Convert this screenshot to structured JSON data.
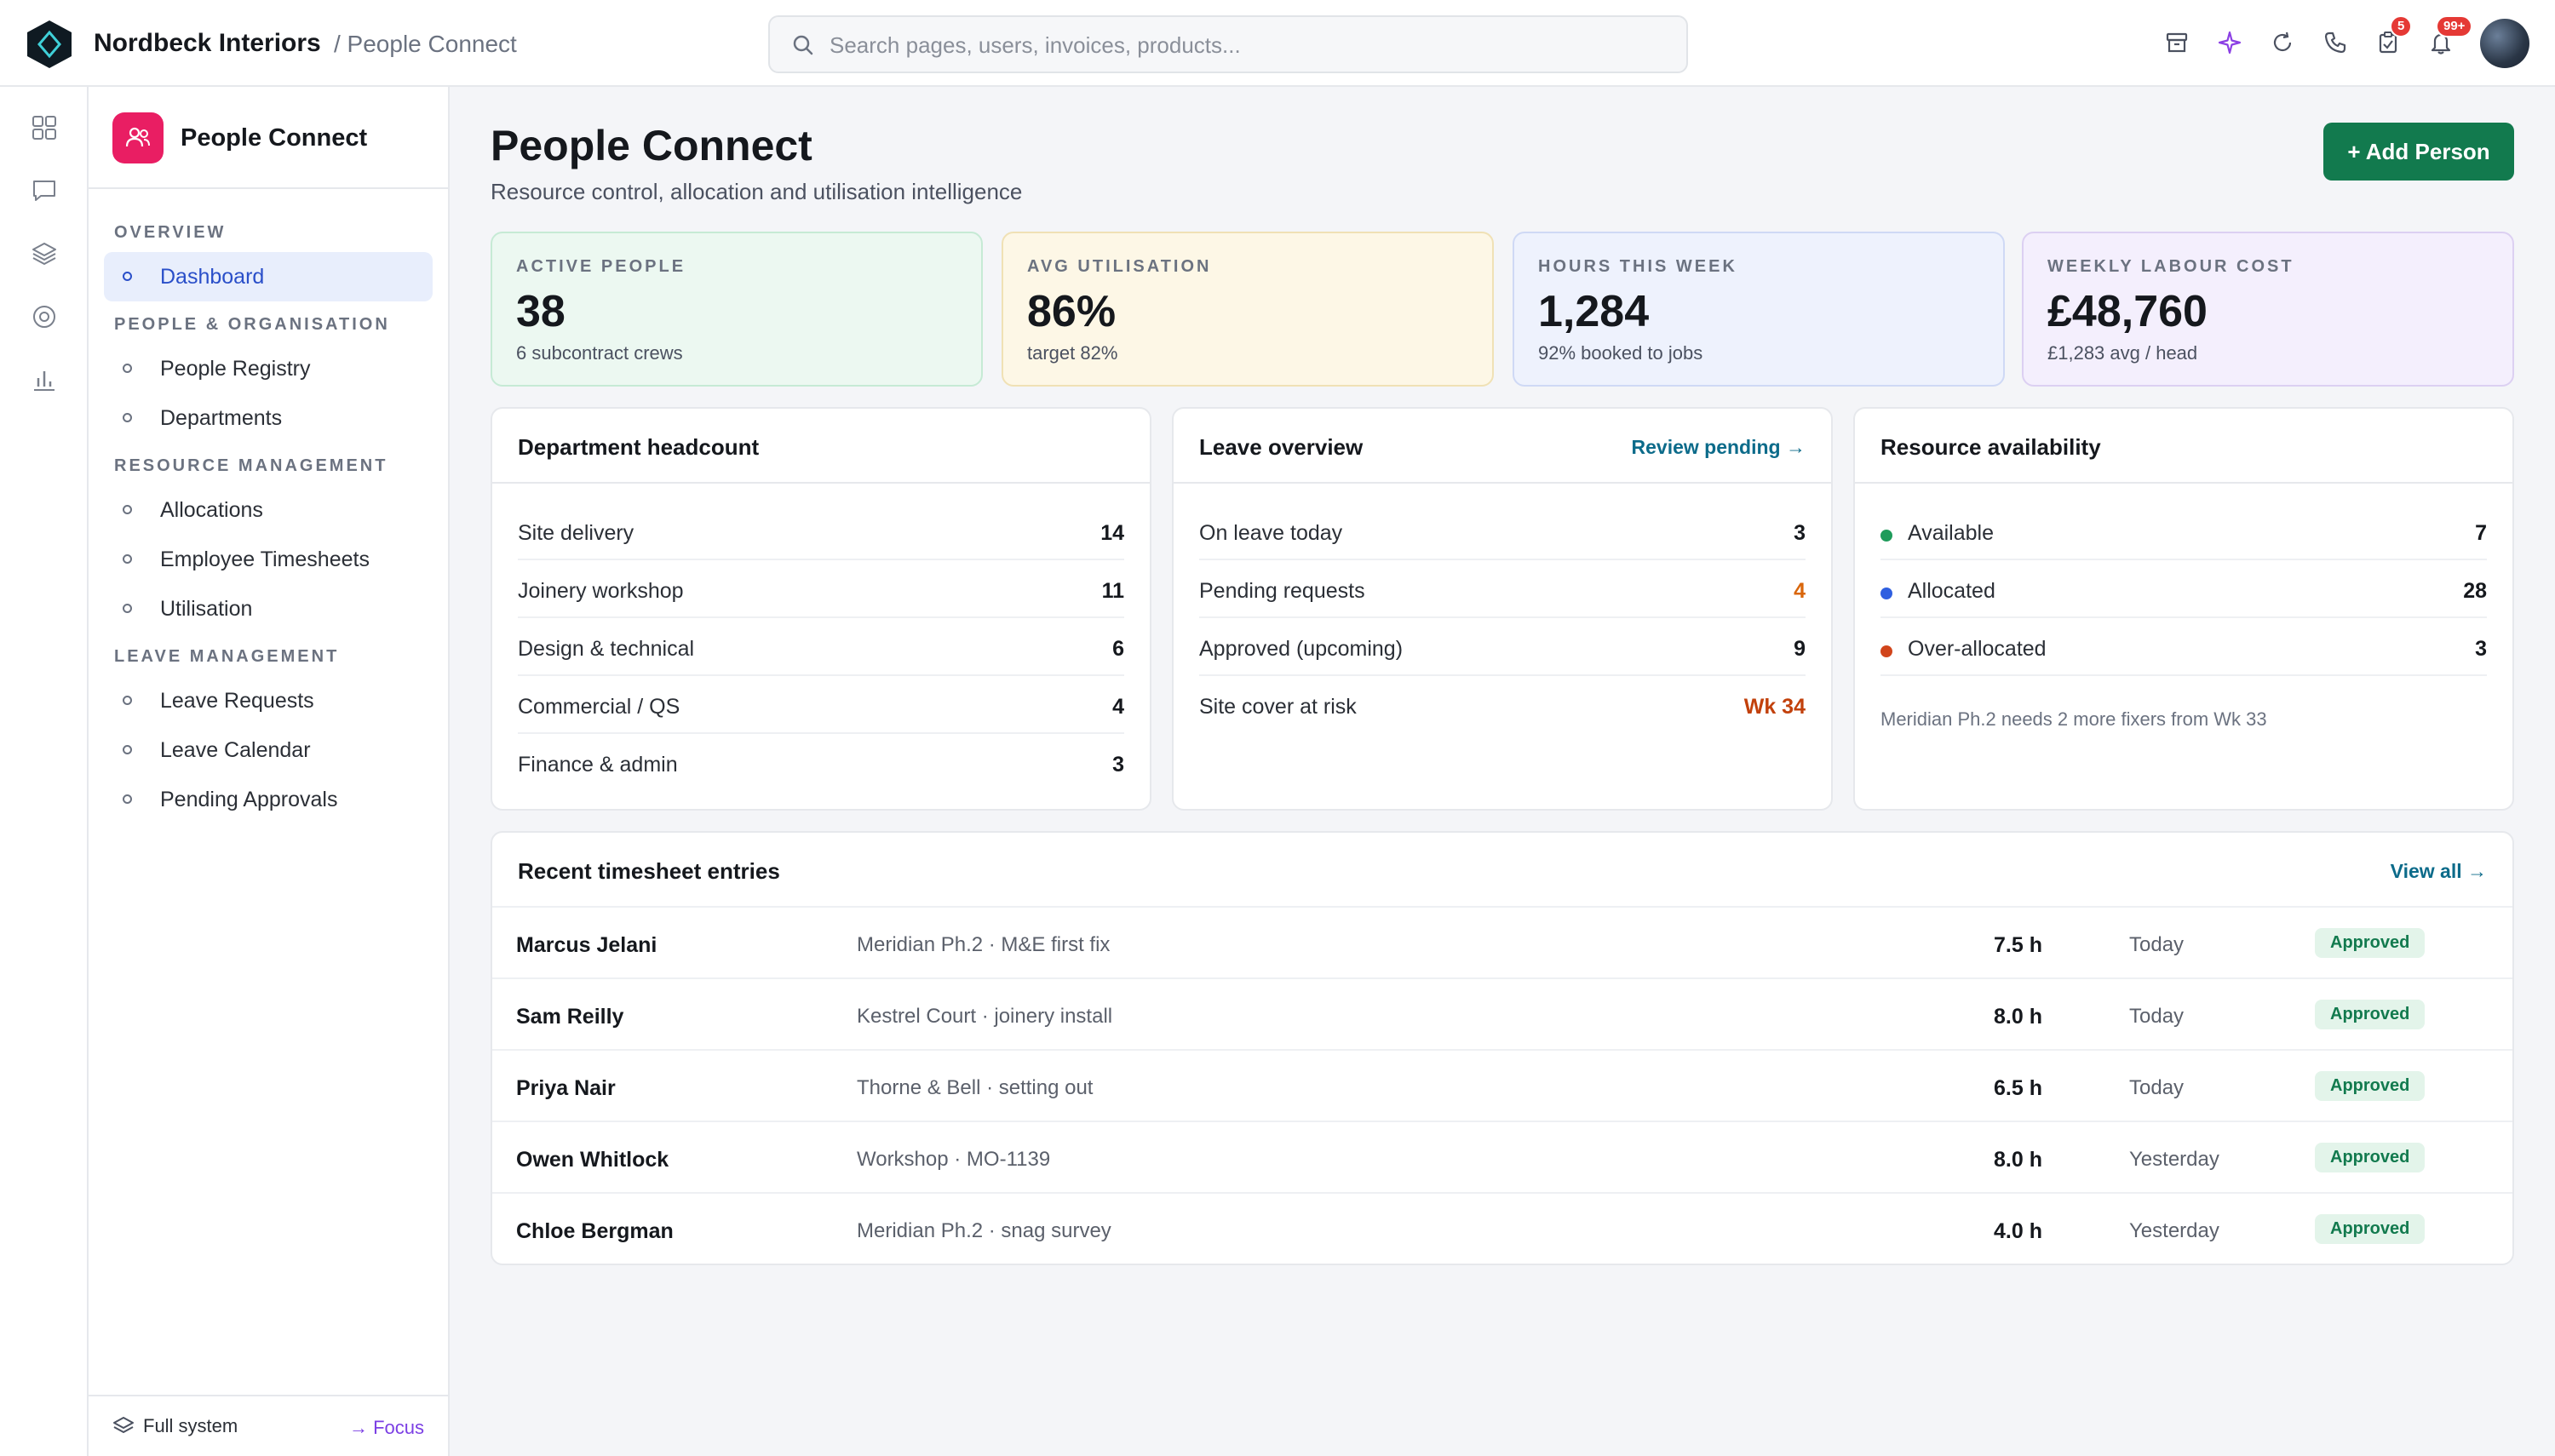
{
  "app": {
    "brand": "Nordbeck Interiors",
    "breadcrumb": "/ People Connect"
  },
  "search": {
    "placeholder": "Search pages, users, invoices, products..."
  },
  "topbar": {
    "tasks_badge": "5",
    "notifications_badge": "99+"
  },
  "sidebar": {
    "title": "People Connect",
    "sections": [
      {
        "label": "OVERVIEW",
        "items": [
          "Dashboard"
        ]
      },
      {
        "label": "PEOPLE & ORGANISATION",
        "items": [
          "People Registry",
          "Departments"
        ]
      },
      {
        "label": "RESOURCE MANAGEMENT",
        "items": [
          "Allocations",
          "Employee Timesheets",
          "Utilisation"
        ]
      },
      {
        "label": "LEAVE MANAGEMENT",
        "items": [
          "Leave Requests",
          "Leave Calendar",
          "Pending Approvals"
        ]
      }
    ],
    "footer": {
      "full": "Full system",
      "focus": "→ Focus"
    }
  },
  "page": {
    "title": "People Connect",
    "subtitle": "Resource control, allocation and utilisation intelligence",
    "add_button": "+ Add Person"
  },
  "stats": [
    {
      "label": "ACTIVE PEOPLE",
      "value": "38",
      "sub": "6 subcontract crews"
    },
    {
      "label": "AVG UTILISATION",
      "value": "86%",
      "sub": "target 82%"
    },
    {
      "label": "HOURS THIS WEEK",
      "value": "1,284",
      "sub": "92% booked to jobs"
    },
    {
      "label": "WEEKLY LABOUR COST",
      "value": "£48,760",
      "sub": "£1,283 avg / head"
    }
  ],
  "headcount": {
    "title": "Department headcount",
    "rows": [
      {
        "label": "Site delivery",
        "value": "14"
      },
      {
        "label": "Joinery workshop",
        "value": "11"
      },
      {
        "label": "Design & technical",
        "value": "6"
      },
      {
        "label": "Commercial / QS",
        "value": "4"
      },
      {
        "label": "Finance & admin",
        "value": "3"
      }
    ]
  },
  "leave": {
    "title": "Leave overview",
    "link": "Review pending →",
    "rows": [
      {
        "label": "On leave today",
        "value": "3"
      },
      {
        "label": "Pending requests",
        "value": "4"
      },
      {
        "label": "Approved (upcoming)",
        "value": "9"
      },
      {
        "label": "Site cover at risk",
        "value": "Wk 34"
      }
    ]
  },
  "availability": {
    "title": "Resource availability",
    "rows": [
      {
        "label": "Available",
        "value": "7",
        "color": "#1e9b5a"
      },
      {
        "label": "Allocated",
        "value": "28",
        "color": "#2f5fe0"
      },
      {
        "label": "Over-allocated",
        "value": "3",
        "color": "#d1451b"
      }
    ],
    "note": "Meridian Ph.2 needs 2 more fixers from Wk 33"
  },
  "timesheets": {
    "title": "Recent timesheet entries",
    "link": "View all →",
    "rows": [
      {
        "name": "Marcus Jelani",
        "project": "Meridian Ph.2 · M&E first fix",
        "hours": "7.5 h",
        "day": "Today",
        "status": "Approved"
      },
      {
        "name": "Sam Reilly",
        "project": "Kestrel Court · joinery install",
        "hours": "8.0 h",
        "day": "Today",
        "status": "Approved"
      },
      {
        "name": "Priya Nair",
        "project": "Thorne & Bell · setting out",
        "hours": "6.5 h",
        "day": "Today",
        "status": "Approved"
      },
      {
        "name": "Owen Whitlock",
        "project": "Workshop · MO-1139",
        "hours": "8.0 h",
        "day": "Yesterday",
        "status": "Approved"
      },
      {
        "name": "Chloe Bergman",
        "project": "Meridian Ph.2 · snag survey",
        "hours": "4.0 h",
        "day": "Yesterday",
        "status": "Approved"
      }
    ]
  },
  "colors": {
    "accent": "#127a4e",
    "warning": "#d9660b",
    "danger": "#c2410c",
    "sidebar_icon": "#e91e63"
  }
}
